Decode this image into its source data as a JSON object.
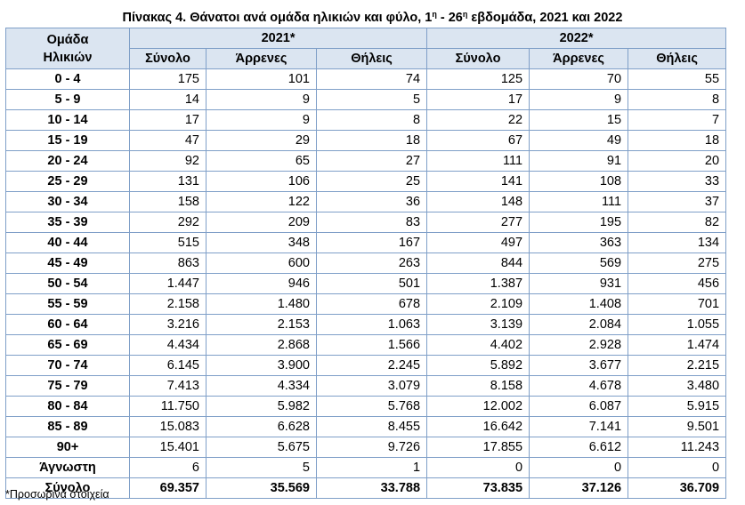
{
  "title": {
    "prefix": "Πίνακας 4. Θάνατοι ανά ομάδα ηλικιών και φύλο, 1",
    "sup1": "η",
    "middle": " - 26",
    "sup2": "η",
    "suffix": " εβδομάδα, 2021 και 2022"
  },
  "table": {
    "age_header_line1": "Ομάδα",
    "age_header_line2": "Ηλικιών",
    "year_2021": "2021*",
    "year_2022": "2022*",
    "col_total": "Σύνολο",
    "col_male": "Άρρενες",
    "col_female": "Θήλεις",
    "rows": [
      {
        "age": "0 - 4",
        "t21": "175",
        "m21": "101",
        "f21": "74",
        "t22": "125",
        "m22": "70",
        "f22": "55"
      },
      {
        "age": "5 - 9",
        "t21": "14",
        "m21": "9",
        "f21": "5",
        "t22": "17",
        "m22": "9",
        "f22": "8"
      },
      {
        "age": "10 - 14",
        "t21": "17",
        "m21": "9",
        "f21": "8",
        "t22": "22",
        "m22": "15",
        "f22": "7"
      },
      {
        "age": "15 - 19",
        "t21": "47",
        "m21": "29",
        "f21": "18",
        "t22": "67",
        "m22": "49",
        "f22": "18"
      },
      {
        "age": "20 - 24",
        "t21": "92",
        "m21": "65",
        "f21": "27",
        "t22": "111",
        "m22": "91",
        "f22": "20"
      },
      {
        "age": "25 - 29",
        "t21": "131",
        "m21": "106",
        "f21": "25",
        "t22": "141",
        "m22": "108",
        "f22": "33"
      },
      {
        "age": "30 - 34",
        "t21": "158",
        "m21": "122",
        "f21": "36",
        "t22": "148",
        "m22": "111",
        "f22": "37"
      },
      {
        "age": "35 - 39",
        "t21": "292",
        "m21": "209",
        "f21": "83",
        "t22": "277",
        "m22": "195",
        "f22": "82"
      },
      {
        "age": "40 - 44",
        "t21": "515",
        "m21": "348",
        "f21": "167",
        "t22": "497",
        "m22": "363",
        "f22": "134"
      },
      {
        "age": "45 - 49",
        "t21": "863",
        "m21": "600",
        "f21": "263",
        "t22": "844",
        "m22": "569",
        "f22": "275"
      },
      {
        "age": "50 - 54",
        "t21": "1.447",
        "m21": "946",
        "f21": "501",
        "t22": "1.387",
        "m22": "931",
        "f22": "456"
      },
      {
        "age": "55 - 59",
        "t21": "2.158",
        "m21": "1.480",
        "f21": "678",
        "t22": "2.109",
        "m22": "1.408",
        "f22": "701"
      },
      {
        "age": "60 - 64",
        "t21": "3.216",
        "m21": "2.153",
        "f21": "1.063",
        "t22": "3.139",
        "m22": "2.084",
        "f22": "1.055"
      },
      {
        "age": "65 - 69",
        "t21": "4.434",
        "m21": "2.868",
        "f21": "1.566",
        "t22": "4.402",
        "m22": "2.928",
        "f22": "1.474"
      },
      {
        "age": "70 - 74",
        "t21": "6.145",
        "m21": "3.900",
        "f21": "2.245",
        "t22": "5.892",
        "m22": "3.677",
        "f22": "2.215"
      },
      {
        "age": "75 - 79",
        "t21": "7.413",
        "m21": "4.334",
        "f21": "3.079",
        "t22": "8.158",
        "m22": "4.678",
        "f22": "3.480"
      },
      {
        "age": "80 - 84",
        "t21": "11.750",
        "m21": "5.982",
        "f21": "5.768",
        "t22": "12.002",
        "m22": "6.087",
        "f22": "5.915"
      },
      {
        "age": "85 - 89",
        "t21": "15.083",
        "m21": "6.628",
        "f21": "8.455",
        "t22": "16.642",
        "m22": "7.141",
        "f22": "9.501"
      },
      {
        "age": "90+",
        "t21": "15.401",
        "m21": "5.675",
        "f21": "9.726",
        "t22": "17.855",
        "m22": "6.612",
        "f22": "11.243"
      },
      {
        "age": "Άγνωστη",
        "t21": "6",
        "m21": "5",
        "f21": "1",
        "t22": "0",
        "m22": "0",
        "f22": "0"
      }
    ],
    "total": {
      "age": "Σύνολο",
      "t21": "69.357",
      "m21": "35.569",
      "f21": "33.788",
      "t22": "73.835",
      "m22": "37.126",
      "f22": "36.709"
    }
  },
  "footnote": "*Προσωρινά στοιχεία",
  "colors": {
    "header_bg": "#dbe5f1",
    "border": "#7f9fc8"
  }
}
